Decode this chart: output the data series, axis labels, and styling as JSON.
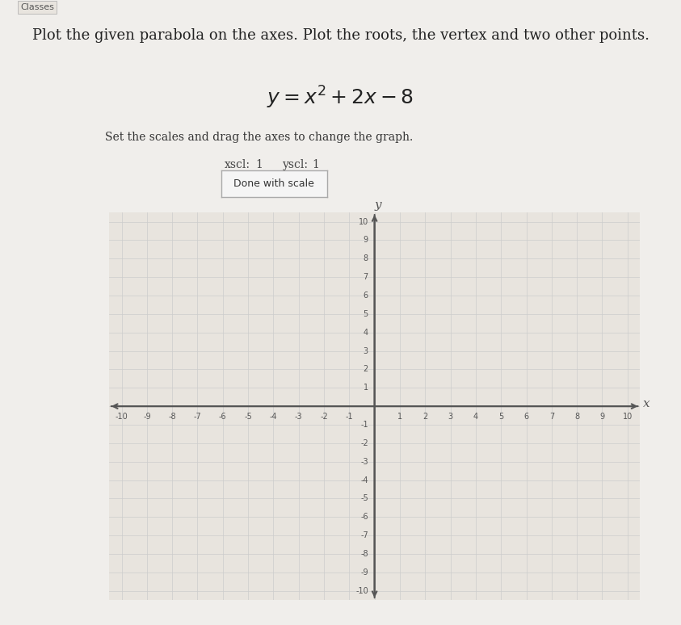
{
  "title_text": "Plot the given parabola on the axes. Plot the roots, the vertex and two other points.",
  "equation": "y = x^2 + 2x - 8",
  "subtitle": "Set the scales and drag the axes to change the graph.",
  "xscl_label": "xscl:",
  "xscl_val": "1",
  "yscl_label": "yscl:",
  "yscl_val": "1",
  "button_text": "Done with scale",
  "tab_text": "Classes",
  "background_color": "#f0eeeb",
  "grid_color": "#cccccc",
  "axis_color": "#555555",
  "tick_label_color": "#555555",
  "xlim": [
    -10,
    10
  ],
  "ylim": [
    -10,
    10
  ],
  "xscl": 1,
  "yscl": 1,
  "graph_bg": "#e8e4de"
}
